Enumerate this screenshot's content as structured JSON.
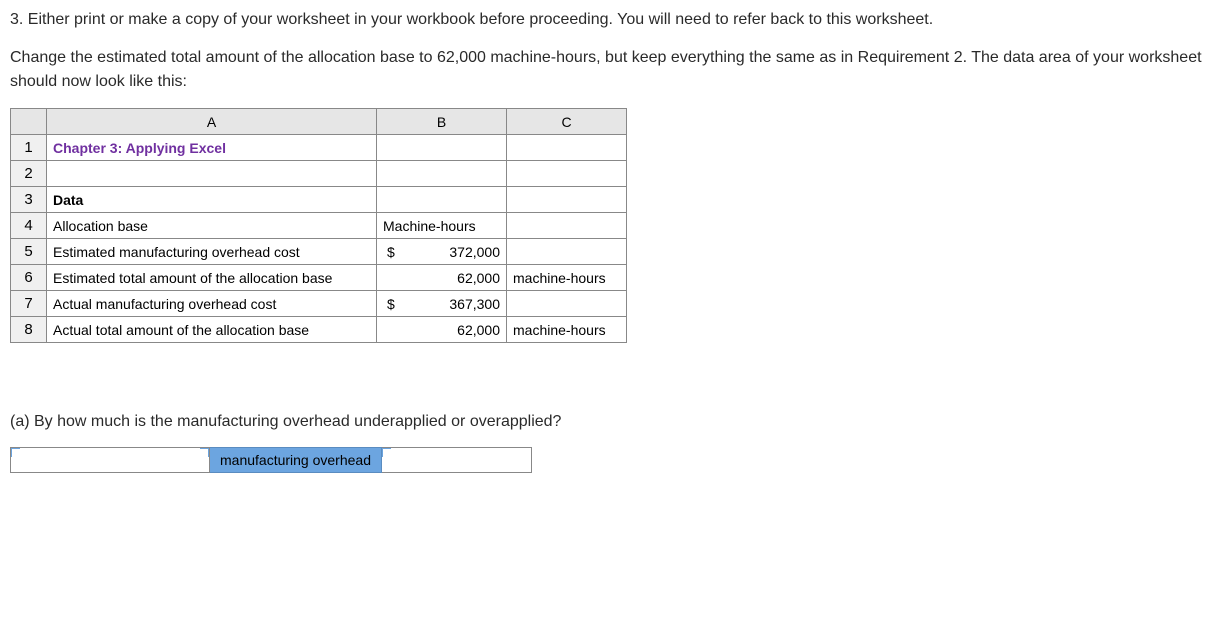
{
  "instructions": {
    "line1": "3. Either print or make a copy of your worksheet in your workbook before proceeding. You will need to refer back to this worksheet.",
    "line2": "Change the estimated total amount of the allocation base to 62,000 machine-hours, but keep everything the same as in Requirement 2. The data area of your worksheet should now look like this:"
  },
  "spreadsheet": {
    "columns": [
      "A",
      "B",
      "C"
    ],
    "rows": {
      "1": {
        "a": "Chapter 3: Applying Excel",
        "a_style": "chapter"
      },
      "2": {
        "a": ""
      },
      "3": {
        "a": "Data",
        "a_style": "bold"
      },
      "4": {
        "a": "Allocation base",
        "b": "Machine-hours",
        "b_align": "left"
      },
      "5": {
        "a": "Estimated manufacturing overhead cost",
        "b_sym": "$",
        "b_val": "372,000"
      },
      "6": {
        "a": "Estimated total amount of the allocation base",
        "b_val": "62,000",
        "c": "machine-hours"
      },
      "7": {
        "a": "Actual manufacturing overhead cost",
        "b_sym": "$",
        "b_val": "367,300"
      },
      "8": {
        "a": "Actual total amount of the allocation base",
        "b_val": "62,000",
        "c": "machine-hours"
      }
    }
  },
  "question": {
    "text": "(a) By how much is the manufacturing overhead underapplied or overapplied?",
    "label": "manufacturing overhead",
    "dropdown_value": "",
    "amount_value": ""
  },
  "colors": {
    "header_bg": "#e6e6e6",
    "rownum_bg": "#f0f0f0",
    "chapter_color": "#7030a0",
    "answer_label_bg": "#6ca5e0",
    "border": "#888888",
    "corner_marker": "#6aa3de"
  }
}
